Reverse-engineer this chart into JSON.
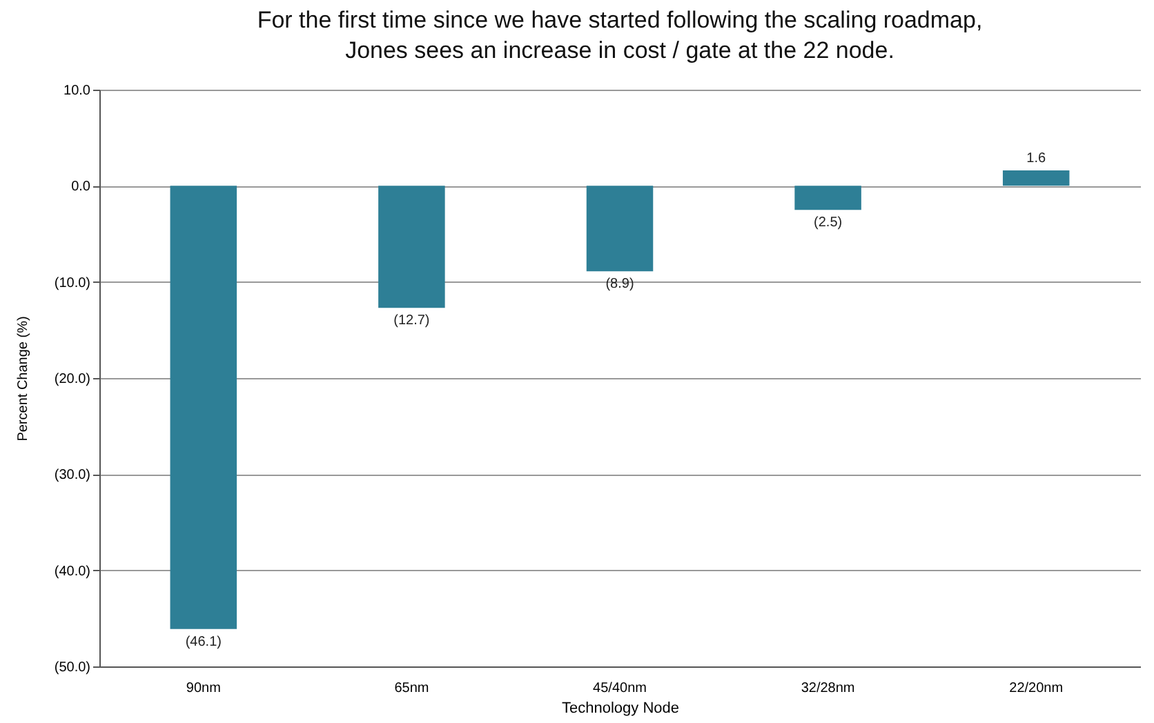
{
  "chart_data": {
    "type": "bar",
    "title": "For the first time since we have started following the scaling roadmap,\nJones sees an increase in cost / gate at the 22 node.",
    "xlabel": "Technology Node",
    "ylabel": "Percent Change (%)",
    "categories": [
      "90nm",
      "65nm",
      "45/40nm",
      "32/28nm",
      "22/20nm"
    ],
    "values": [
      -46.1,
      -12.7,
      -8.9,
      -2.5,
      1.6
    ],
    "value_labels": [
      "(46.1)",
      "(12.7)",
      "(8.9)",
      "(2.5)",
      "1.6"
    ],
    "color": "#2e7f96",
    "ylim": [
      -50,
      10
    ],
    "yticks": [
      {
        "value": 10,
        "label": "10.0"
      },
      {
        "value": 0,
        "label": "0.0"
      },
      {
        "value": -10,
        "label": "(10.0)"
      },
      {
        "value": -20,
        "label": "(20.0)"
      },
      {
        "value": -30,
        "label": "(30.0)"
      },
      {
        "value": -40,
        "label": "(40.0)"
      },
      {
        "value": -50,
        "label": "(50.0)"
      }
    ],
    "grid": "y"
  }
}
